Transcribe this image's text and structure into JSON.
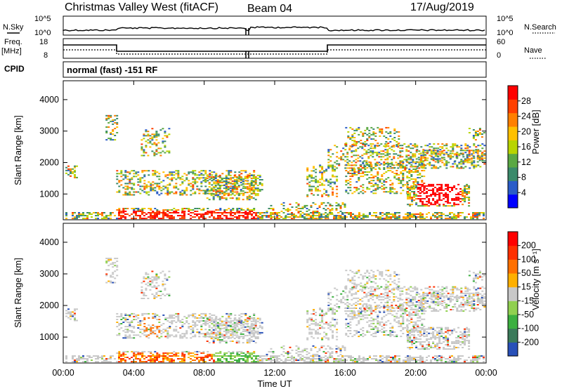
{
  "header": {
    "title": "Christmas Valley West (fitACF)",
    "beam": "Beam 04",
    "date": "17/Aug/2019"
  },
  "noise_panel": {
    "left_label": "N.Sky",
    "right_label": "N.Search",
    "left_ticks": [
      "10^5",
      "10^0"
    ],
    "right_ticks": [
      "10^5",
      "10^0"
    ]
  },
  "freq_panel": {
    "left_label_1": "Freq.",
    "left_label_2": "[MHz]",
    "right_label": "Nave",
    "left_ticks": [
      "18",
      "8"
    ],
    "right_ticks": [
      "60",
      "0"
    ]
  },
  "cpid": {
    "label": "CPID",
    "value": "normal (fast) -151 RF"
  },
  "colors": {
    "power_scale": [
      "#0000ff",
      "#2a5cc8",
      "#3a8a6a",
      "#5aa843",
      "#b8d400",
      "#ffc000",
      "#ff8000",
      "#ff4000",
      "#ff0000"
    ],
    "velocity_scale": [
      "#2850b8",
      "#3a7a5a",
      "#3cb040",
      "#90d050",
      "#c8c8c8",
      "#ffb000",
      "#ff7000",
      "#ff3000",
      "#ff0000"
    ]
  },
  "chart_data": [
    {
      "type": "heatmap",
      "name": "power",
      "ylabel": "Slant Range [km]",
      "yticks": [
        "4000",
        "3000",
        "2000",
        "1000"
      ],
      "colorbar_label": "Power [dB]",
      "colorbar_ticks": [
        "28",
        "24",
        "20",
        "16",
        "12",
        "8",
        "4"
      ],
      "ylim": [
        180,
        4600
      ]
    },
    {
      "type": "heatmap",
      "name": "velocity",
      "ylabel": "Slant Range [km]",
      "yticks": [
        "4000",
        "3000",
        "2000",
        "1000"
      ],
      "colorbar_label": "Velocity [m s⁻¹]",
      "colorbar_ticks": [
        "200",
        "100",
        "50",
        "15",
        "-15",
        "-50",
        "-100",
        "-200"
      ],
      "ylim": [
        180,
        4600
      ],
      "xlabel": "Time UT",
      "xticks": [
        "00:00",
        "04:00",
        "08:00",
        "12:00",
        "16:00",
        "20:00",
        "00:00"
      ]
    }
  ]
}
